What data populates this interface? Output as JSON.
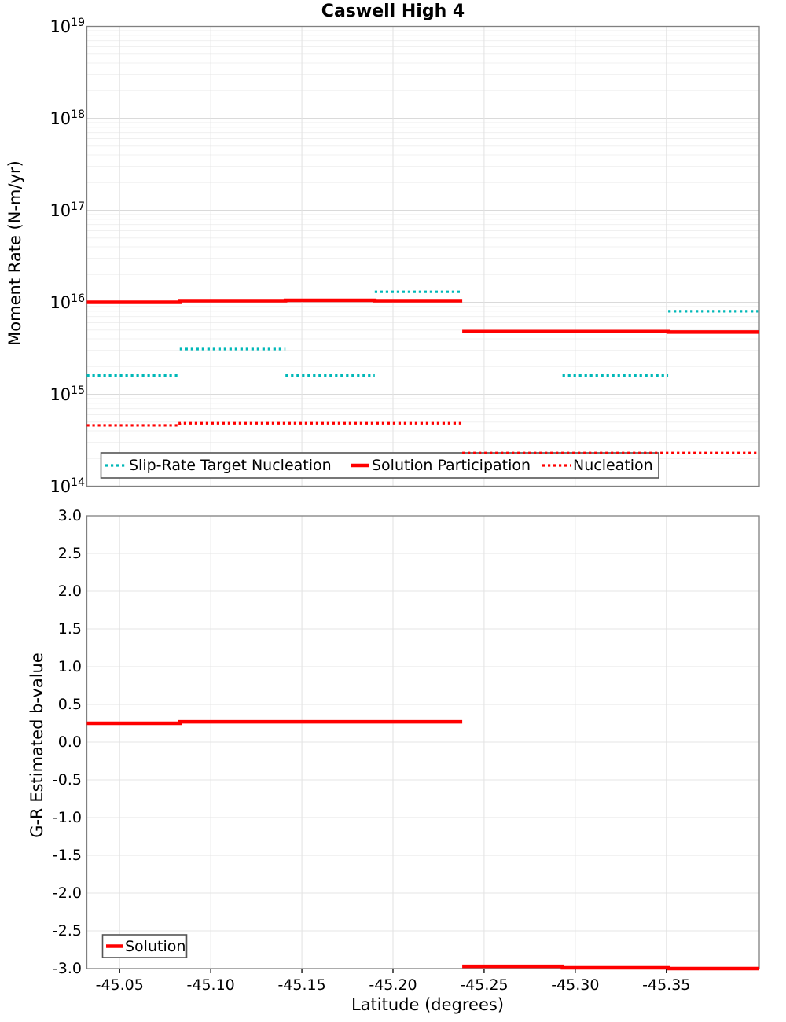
{
  "chart_data": [
    {
      "type": "line",
      "title": "Caswell High 4",
      "ylabel": "Moment Rate (N-m/yr)",
      "xlabel": "",
      "yscale": "log",
      "ylim": [
        100000000000000.0,
        1e+19
      ],
      "ytick_base": "10",
      "ytick_exponents": [
        "19",
        "18",
        "17",
        "16",
        "15",
        "14"
      ],
      "grid": true,
      "legend_position": "inside-bottom-left",
      "series": [
        {
          "name": "Slip-Rate Target Nucleation",
          "color": "#00b8b8",
          "line_style": "dotted",
          "segments": [
            [
              -45.032,
              -45.083,
              1600000000000000.0
            ],
            [
              -45.083,
              -45.141,
              3100000000000000.0
            ],
            [
              -45.141,
              -45.19,
              1600000000000000.0
            ],
            [
              -45.19,
              -45.238,
              1.3e+16
            ],
            [
              -45.293,
              -45.351,
              1600000000000000.0
            ],
            [
              -45.351,
              -45.401,
              8000000000000000.0
            ]
          ]
        },
        {
          "name": "Solution Participation",
          "color": "#ff0000",
          "line_style": "solid",
          "segments": [
            [
              -45.032,
              -45.083,
              1e+16
            ],
            [
              -45.083,
              -45.141,
              1.04e+16
            ],
            [
              -45.141,
              -45.19,
              1.05e+16
            ],
            [
              -45.19,
              -45.238,
              1.04e+16
            ],
            [
              -45.238,
              -45.293,
              4800000000000000.0
            ],
            [
              -45.293,
              -45.351,
              4800000000000000.0
            ],
            [
              -45.351,
              -45.401,
              4750000000000000.0
            ]
          ]
        },
        {
          "name": "Nucleation",
          "color": "#ff0000",
          "line_style": "dotted",
          "segments": [
            [
              -45.032,
              -45.083,
              460000000000000.0
            ],
            [
              -45.083,
              -45.238,
              485000000000000.0
            ],
            [
              -45.238,
              -45.401,
              230000000000000.0
            ]
          ]
        }
      ]
    },
    {
      "type": "line",
      "title": "",
      "ylabel": "G-R Estimated b-value",
      "xlabel": "Latitude (degrees)",
      "yscale": "linear",
      "ylim": [
        -3.0,
        3.0
      ],
      "yticks": [
        {
          "label": "3.0",
          "value": 3.0
        },
        {
          "label": "2.5",
          "value": 2.5
        },
        {
          "label": "2.0",
          "value": 2.0
        },
        {
          "label": "1.5",
          "value": 1.5
        },
        {
          "label": "1.0",
          "value": 1.0
        },
        {
          "label": "0.5",
          "value": 0.5
        },
        {
          "label": "0.0",
          "value": 0.0
        },
        {
          "label": "-0.5",
          "value": -0.5
        },
        {
          "label": "-1.0",
          "value": -1.0
        },
        {
          "label": "-1.5",
          "value": -1.5
        },
        {
          "label": "-2.0",
          "value": -2.0
        },
        {
          "label": "-2.5",
          "value": -2.5
        },
        {
          "label": "-3.0",
          "value": -3.0
        }
      ],
      "grid": true,
      "legend_position": "inside-bottom-left",
      "series": [
        {
          "name": "Solution",
          "color": "#ff0000",
          "line_style": "solid",
          "segments": [
            [
              -45.032,
              -45.083,
              0.25
            ],
            [
              -45.083,
              -45.238,
              0.27
            ],
            [
              -45.238,
              -45.293,
              -2.97
            ],
            [
              -45.293,
              -45.351,
              -2.99
            ],
            [
              -45.351,
              -45.401,
              -3.0
            ]
          ]
        }
      ]
    }
  ],
  "x_axis": {
    "label": "Latitude (degrees)",
    "min": -45.032,
    "max": -45.401,
    "ticks": [
      {
        "label": "-45.05",
        "value": -45.05
      },
      {
        "label": "-45.10",
        "value": -45.1
      },
      {
        "label": "-45.15",
        "value": -45.15
      },
      {
        "label": "-45.20",
        "value": -45.2
      },
      {
        "label": "-45.25",
        "value": -45.25
      },
      {
        "label": "-45.30",
        "value": -45.3
      },
      {
        "label": "-45.35",
        "value": -45.35
      }
    ]
  },
  "section_boundaries": [
    -45.032,
    -45.083,
    -45.141,
    -45.19,
    -45.238,
    -45.293,
    -45.351,
    -45.401
  ],
  "colors": {
    "series_red": "#ff0000",
    "series_teal": "#00b8b8",
    "frame": "#808080",
    "grid_major": "#dadada",
    "grid_minor": "#f0f0f0",
    "legend_border": "#555555"
  }
}
